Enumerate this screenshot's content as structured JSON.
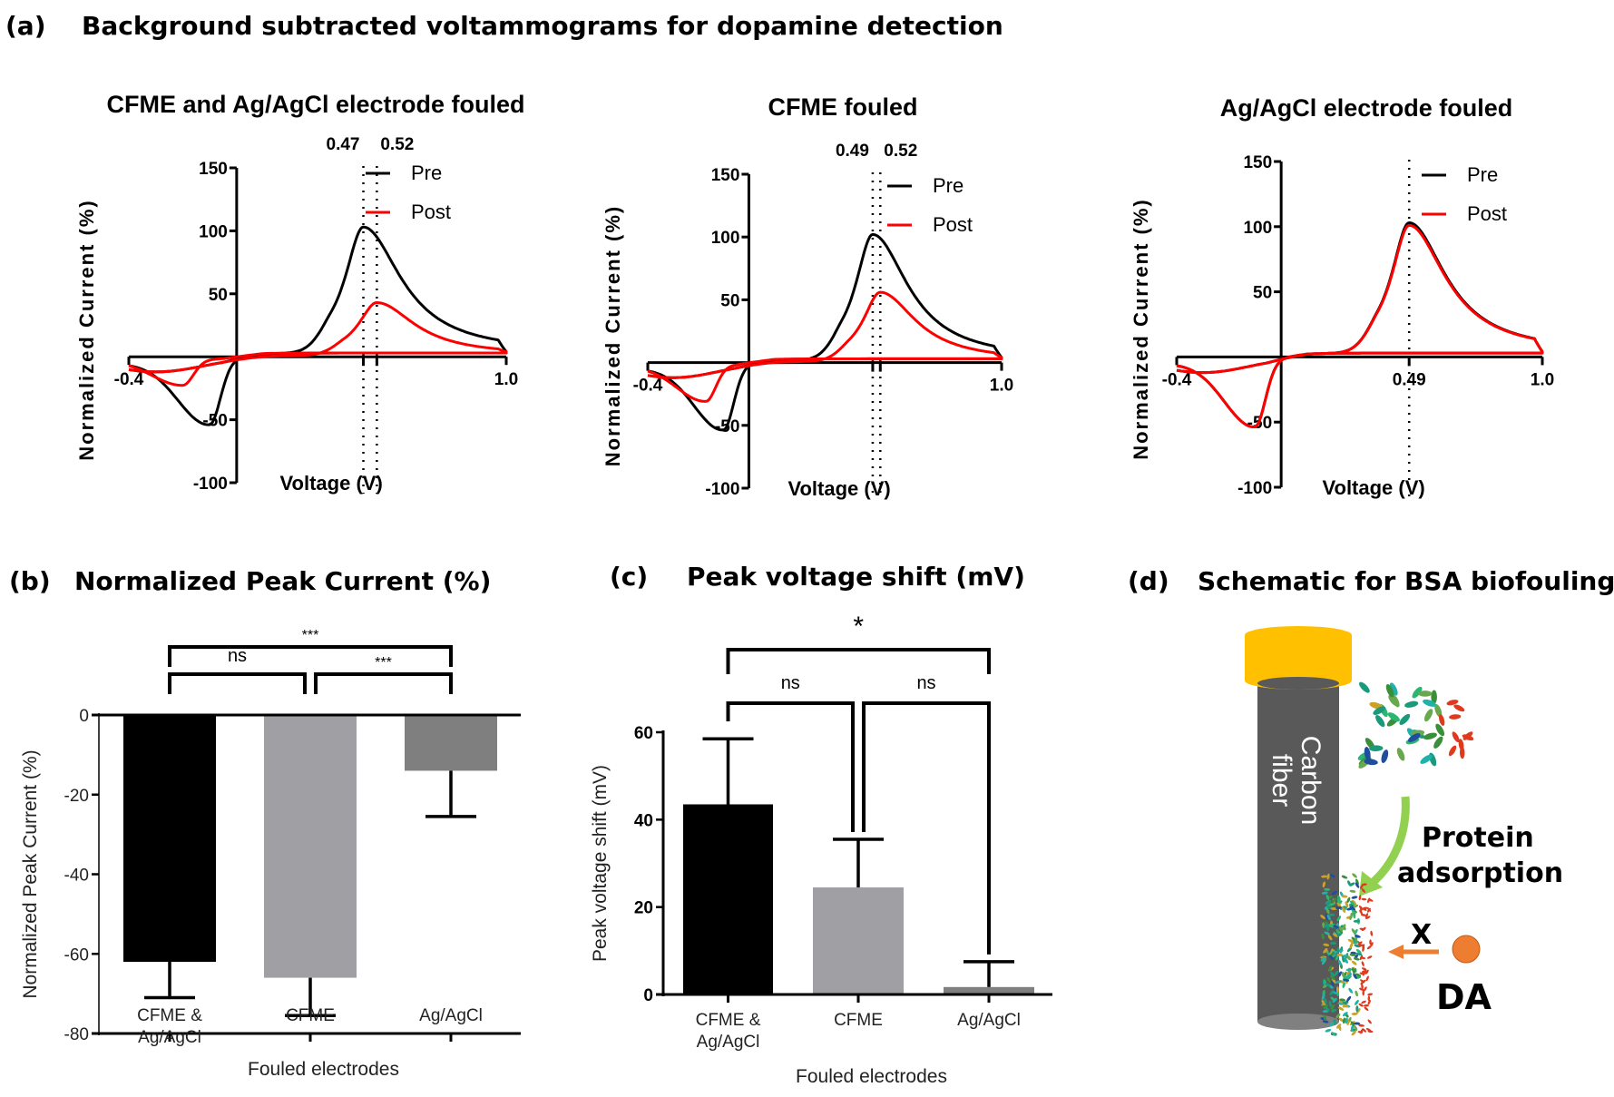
{
  "figure": {
    "panel_a": {
      "letter": "(a)",
      "title": "Background subtracted voltammograms for dopamine detection"
    },
    "panel_b": {
      "letter": "(b)",
      "title": "Normalized Peak Current (%)"
    },
    "panel_c": {
      "letter": "(c)",
      "title": "Peak voltage shift (mV)"
    },
    "panel_d": {
      "letter": "(d)",
      "title": "Schematic for BSA biofouling",
      "fiber_label_line1": "Carbon",
      "fiber_label_line2": "fiber",
      "process_label_line1": "Protein",
      "process_label_line2": "adsorption",
      "blocked_mark": "X",
      "analyte_label": "DA",
      "colors": {
        "insulation": "#FFC000",
        "fiber": "#595959",
        "arrow_green": "#92D050",
        "arrow_orange": "#ED7D31",
        "analyte": "#ED7D31"
      },
      "icons": [
        "bsa-protein-icon",
        "green-curved-arrow-icon",
        "orange-arrow-icon",
        "dopamine-molecule-icon"
      ]
    }
  },
  "chart_data": [
    {
      "type": "line",
      "title": "CFME and  Ag/AgCl electrode fouled",
      "xlabel": "Voltage  (V)",
      "ylabel": "Normalized Current  (%)",
      "xlim": [
        -0.4,
        1.0
      ],
      "ylim": [
        -100,
        150
      ],
      "xticks": [
        "-0.4",
        "1.0"
      ],
      "yticks": [
        "150",
        "100",
        "50",
        "-50",
        "-100"
      ],
      "yticks_values": [
        150,
        100,
        50,
        -50,
        -100
      ],
      "legend": [
        "Pre",
        "Post"
      ],
      "legend_position": "top-right",
      "annotations": [
        {
          "label": "0.47",
          "x": 0.47
        },
        {
          "label": "0.52",
          "x": 0.52
        }
      ],
      "series": [
        {
          "name": "Pre",
          "color": "#000000",
          "ox_peak_v": 0.47,
          "ox_peak_current": 100,
          "red_peak_v": -0.1,
          "red_peak_current": -50,
          "baseline_fwd": 3,
          "baseline_rev": -14
        },
        {
          "name": "Post",
          "color": "#FF0000",
          "ox_peak_v": 0.52,
          "ox_peak_current": 42,
          "red_peak_v": -0.2,
          "red_peak_current": -20,
          "baseline_fwd": 1,
          "baseline_rev": -7
        }
      ],
      "grid": false
    },
    {
      "type": "line",
      "title": "CFME fouled",
      "xlabel": "Voltage  (V)",
      "ylabel": "Normalized Current  (%)",
      "xlim": [
        -0.4,
        1.0
      ],
      "ylim": [
        -100,
        150
      ],
      "xticks": [
        "-0.4",
        "1.0"
      ],
      "yticks": [
        "150",
        "100",
        "50",
        "-50",
        "-100"
      ],
      "yticks_values": [
        150,
        100,
        50,
        -50,
        -100
      ],
      "legend": [
        "Pre",
        "Post"
      ],
      "legend_position": "top-right",
      "annotations": [
        {
          "label": "0.49",
          "x": 0.49
        },
        {
          "label": "0.52",
          "x": 0.52
        }
      ],
      "series": [
        {
          "name": "Pre",
          "color": "#000000",
          "ox_peak_v": 0.49,
          "ox_peak_current": 100,
          "red_peak_v": -0.1,
          "red_peak_current": -50,
          "baseline_fwd": 2,
          "baseline_rev": -13
        },
        {
          "name": "Post",
          "color": "#FF0000",
          "ox_peak_v": 0.52,
          "ox_peak_current": 55,
          "red_peak_v": -0.17,
          "red_peak_current": -28,
          "baseline_fwd": 1,
          "baseline_rev": -8
        }
      ],
      "grid": false
    },
    {
      "type": "line",
      "title": "Ag/AgCl electrode fouled",
      "xlabel": "Voltage  (V)",
      "ylabel": "Normalized Current  (%)",
      "xlim": [
        -0.4,
        1.0
      ],
      "ylim": [
        -100,
        150
      ],
      "xticks": [
        "-0.4",
        "0.49",
        "1.0"
      ],
      "yticks": [
        "150",
        "100",
        "50",
        "-50",
        "-100"
      ],
      "yticks_values": [
        150,
        100,
        50,
        -50,
        -100
      ],
      "legend": [
        "Pre",
        "Post"
      ],
      "legend_position": "top-right",
      "annotations": [
        {
          "label": "0.49",
          "x": 0.49
        }
      ],
      "series": [
        {
          "name": "Pre",
          "color": "#000000",
          "ox_peak_v": 0.49,
          "ox_peak_current": 100,
          "red_peak_v": -0.1,
          "red_peak_current": -50,
          "baseline_fwd": 3,
          "baseline_rev": -13
        },
        {
          "name": "Post",
          "color": "#FF0000",
          "ox_peak_v": 0.49,
          "ox_peak_current": 98,
          "red_peak_v": -0.1,
          "red_peak_current": -50,
          "baseline_fwd": 3,
          "baseline_rev": -13
        }
      ],
      "grid": false
    },
    {
      "type": "bar",
      "title": "Normalized Peak Current (%)",
      "categories": [
        "CFME & Ag/AgCl",
        "CFME",
        "Ag/AgCl"
      ],
      "category_lines": [
        [
          "CFME &",
          "Ag/AgCl"
        ],
        [
          "CFME"
        ],
        [
          "Ag/AgCl"
        ]
      ],
      "values": [
        -62,
        -66,
        -14
      ],
      "error": [
        9,
        9.5,
        11.5
      ],
      "colors": [
        "#000000",
        "#A0A0A4",
        "#7F7F7F"
      ],
      "xlabel": "Fouled electrodes",
      "ylabel": "Normalized Peak Current (%)",
      "ylim": [
        -80,
        0
      ],
      "yticks": [
        0,
        -20,
        -40,
        -60,
        -80
      ],
      "significance": [
        {
          "from": 0,
          "to": 1,
          "label": "ns",
          "level": 1
        },
        {
          "from": 1,
          "to": 2,
          "label": "***",
          "level": 1
        },
        {
          "from": 0,
          "to": 2,
          "label": "***",
          "level": 2
        }
      ],
      "grid": false
    },
    {
      "type": "bar",
      "title": "Peak voltage shift (mV)",
      "categories": [
        "CFME & Ag/AgCl",
        "CFME",
        "Ag/AgCl"
      ],
      "category_lines": [
        [
          "CFME &",
          "Ag/AgCl"
        ],
        [
          "CFME"
        ],
        [
          "Ag/AgCl"
        ]
      ],
      "values": [
        43.5,
        24.5,
        1.7
      ],
      "error": [
        15,
        11,
        5.8
      ],
      "colors": [
        "#000000",
        "#A0A0A4",
        "#7F7F7F"
      ],
      "xlabel": "Fouled electrodes",
      "ylabel": "Peak voltage shift  (mV)",
      "ylim": [
        0,
        60
      ],
      "yticks": [
        0,
        20,
        40,
        60
      ],
      "significance": [
        {
          "from": 0,
          "to": 1,
          "label": "ns",
          "level": 1
        },
        {
          "from": 1,
          "to": 2,
          "label": "ns",
          "level": 1
        },
        {
          "from": 0,
          "to": 2,
          "label": "*",
          "level": 2
        }
      ],
      "grid": false
    }
  ]
}
